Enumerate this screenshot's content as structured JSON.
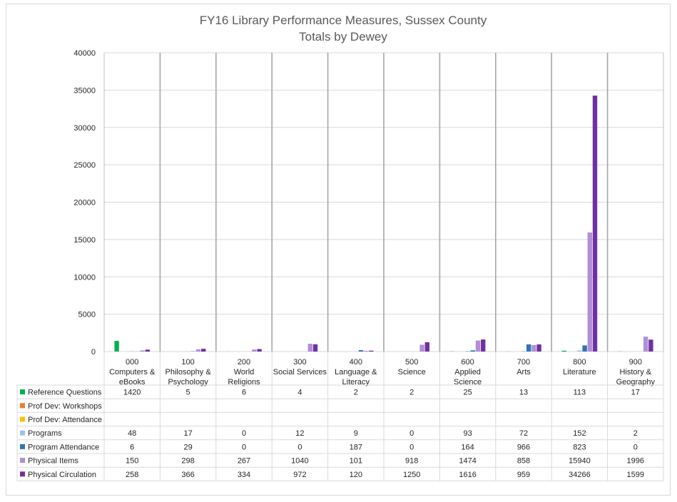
{
  "colors": {
    "reference_questions": "#00b050",
    "prof_dev_workshops": "#ed7d31",
    "prof_dev_attendance": "#ffc000",
    "programs": "#9dc3e6",
    "program_attendance": "#2e75b6",
    "physical_items": "#b18ed8",
    "physical_circulation": "#7030a0"
  },
  "chart_data": {
    "type": "bar",
    "title": "FY16 Library Performance Measures, Sussex County",
    "subtitle": "Totals by Dewey",
    "ylim": [
      0,
      40000
    ],
    "yticks": [
      "0",
      "5000",
      "10000",
      "15000",
      "20000",
      "25000",
      "30000",
      "35000",
      "40000"
    ],
    "grid": true,
    "legend": "data-table",
    "categories": [
      [
        "000",
        "Computers &",
        "eBooks"
      ],
      [
        "100",
        "Philosophy &",
        "Psychology"
      ],
      [
        "200",
        "World",
        "Religions"
      ],
      [
        "300",
        "Social Services"
      ],
      [
        "400",
        "Language &",
        "Literacy"
      ],
      [
        "500",
        "Science"
      ],
      [
        "600",
        "Applied",
        "Science"
      ],
      [
        "700",
        "Arts"
      ],
      [
        "800",
        "Literature"
      ],
      [
        "900",
        "History &",
        "Geography"
      ]
    ],
    "series": [
      {
        "name": "Reference Questions",
        "color_key": "reference_questions",
        "values": [
          1420,
          5,
          6,
          4,
          2,
          2,
          25,
          13,
          113,
          17
        ]
      },
      {
        "name": "Prof Dev: Workshops",
        "color_key": "prof_dev_workshops",
        "values": [
          null,
          null,
          null,
          null,
          null,
          null,
          null,
          null,
          null,
          null
        ]
      },
      {
        "name": "Prof Dev: Attendance",
        "color_key": "prof_dev_attendance",
        "values": [
          null,
          null,
          null,
          null,
          null,
          null,
          null,
          null,
          null,
          null
        ]
      },
      {
        "name": "Programs",
        "color_key": "programs",
        "values": [
          48,
          17,
          0,
          12,
          9,
          0,
          93,
          72,
          152,
          2
        ]
      },
      {
        "name": "Program Attendance",
        "color_key": "program_attendance",
        "values": [
          6,
          29,
          0,
          0,
          187,
          0,
          164,
          966,
          823,
          0
        ]
      },
      {
        "name": "Physical Items",
        "color_key": "physical_items",
        "values": [
          150,
          298,
          267,
          1040,
          101,
          918,
          1474,
          858,
          15940,
          1996
        ]
      },
      {
        "name": "Physical Circulation",
        "color_key": "physical_circulation",
        "values": [
          258,
          366,
          334,
          972,
          120,
          1250,
          1616,
          959,
          34266,
          1599
        ]
      }
    ]
  }
}
